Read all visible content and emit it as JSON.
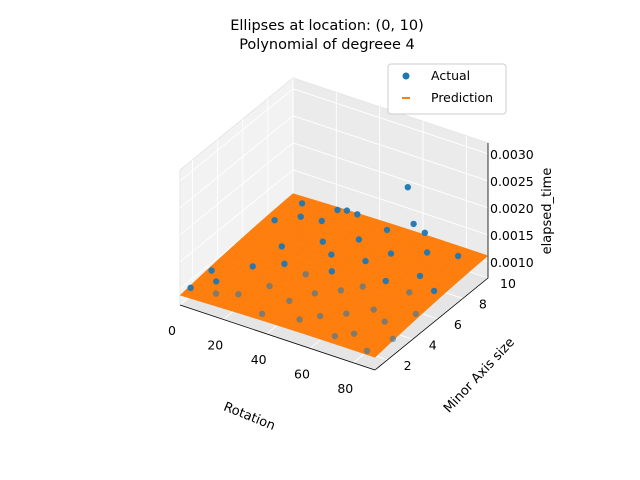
{
  "chart_data": {
    "type": "scatter",
    "title": [
      "Ellipses at location: (0, 10)",
      "Polynomial of degreee 4"
    ],
    "xlabel": "Rotation",
    "ylabel": "Minor Axis size",
    "zlabel": "elapsed_time",
    "x_ticks": [
      "0",
      "20",
      "40",
      "60",
      "80"
    ],
    "y_ticks": [
      "2",
      "4",
      "6",
      "8",
      "10"
    ],
    "z_ticks": [
      "0.0010",
      "0.0015",
      "0.0020",
      "0.0025",
      "0.0030"
    ],
    "xlim": [
      0,
      90
    ],
    "ylim": [
      1,
      10
    ],
    "zlim": [
      0.0007,
      0.0032
    ],
    "grid": true,
    "legend": {
      "position": "top-right",
      "entries": [
        "Actual",
        "Prediction"
      ]
    },
    "colors": {
      "actual": "#1f77b4",
      "prediction": "#ff7f0e"
    },
    "series": [
      {
        "name": "Actual",
        "points": [
          {
            "x": 2,
            "y": 1.5,
            "z": 0.00095
          },
          {
            "x": 3,
            "y": 3.0,
            "z": 0.001
          },
          {
            "x": 8,
            "y": 2.5,
            "z": 0.00096
          },
          {
            "x": 12,
            "y": 1.8,
            "z": 0.00092
          },
          {
            "x": 15,
            "y": 4.2,
            "z": 0.00101
          },
          {
            "x": 18,
            "y": 6.0,
            "z": 0.00108
          },
          {
            "x": 20,
            "y": 2.2,
            "z": 0.00094
          },
          {
            "x": 22,
            "y": 8.5,
            "z": 0.00113
          },
          {
            "x": 25,
            "y": 5.0,
            "z": 0.00104
          },
          {
            "x": 28,
            "y": 3.3,
            "z": 0.00099
          },
          {
            "x": 30,
            "y": 7.2,
            "z": 0.0011
          },
          {
            "x": 32,
            "y": 9.6,
            "z": 0.00118
          },
          {
            "x": 35,
            "y": 1.5,
            "z": 0.00091
          },
          {
            "x": 36,
            "y": 4.8,
            "z": 0.00103
          },
          {
            "x": 38,
            "y": 6.5,
            "z": 0.0011
          },
          {
            "x": 40,
            "y": 2.8,
            "z": 0.00097
          },
          {
            "x": 42,
            "y": 8.0,
            "z": 0.00115
          },
          {
            "x": 44,
            "y": 5.5,
            "z": 0.00106
          },
          {
            "x": 46,
            "y": 3.8,
            "z": 0.001
          },
          {
            "x": 48,
            "y": 9.2,
            "z": 0.00118
          },
          {
            "x": 50,
            "y": 1.9,
            "z": 0.00093
          },
          {
            "x": 52,
            "y": 6.8,
            "z": 0.00111
          },
          {
            "x": 54,
            "y": 4.5,
            "z": 0.00103
          },
          {
            "x": 56,
            "y": 2.5,
            "z": 0.00096
          },
          {
            "x": 58,
            "y": 7.8,
            "z": 0.00114
          },
          {
            "x": 60,
            "y": 5.2,
            "z": 0.00105
          },
          {
            "x": 62,
            "y": 9.8,
            "z": 0.0012
          },
          {
            "x": 64,
            "y": 3.2,
            "z": 0.00098
          },
          {
            "x": 66,
            "y": 6.0,
            "z": 0.00108
          },
          {
            "x": 68,
            "y": 1.6,
            "z": 0.00092
          },
          {
            "x": 70,
            "y": 8.6,
            "z": 0.00117
          },
          {
            "x": 72,
            "y": 4.0,
            "z": 0.00101
          },
          {
            "x": 74,
            "y": 2.1,
            "z": 0.00095
          },
          {
            "x": 76,
            "y": 7.0,
            "z": 0.00112
          },
          {
            "x": 78,
            "y": 5.8,
            "z": 0.00107
          },
          {
            "x": 80,
            "y": 3.5,
            "z": 0.00099
          },
          {
            "x": 82,
            "y": 9.0,
            "z": 0.00119
          },
          {
            "x": 84,
            "y": 1.4,
            "z": 0.0009
          },
          {
            "x": 86,
            "y": 6.4,
            "z": 0.00109
          },
          {
            "x": 88,
            "y": 4.6,
            "z": 0.00103
          },
          {
            "x": 89,
            "y": 2.6,
            "z": 0.00096
          },
          {
            "x": 10,
            "y": 9.0,
            "z": 0.0012
          },
          {
            "x": 6,
            "y": 7.5,
            "z": 0.00112
          },
          {
            "x": 14,
            "y": 8.2,
            "z": 0.00116
          },
          {
            "x": 24,
            "y": 9.4,
            "z": 0.00119
          },
          {
            "x": 75,
            "y": 6.2,
            "z": 0.0029
          },
          {
            "x": 33,
            "y": 8.6,
            "z": 0.00145
          },
          {
            "x": 58,
            "y": 9.6,
            "z": 0.00135
          }
        ]
      },
      {
        "name": "Prediction",
        "surface": "polynomial degree 4 fit over Rotation × Minor Axis size"
      }
    ]
  }
}
